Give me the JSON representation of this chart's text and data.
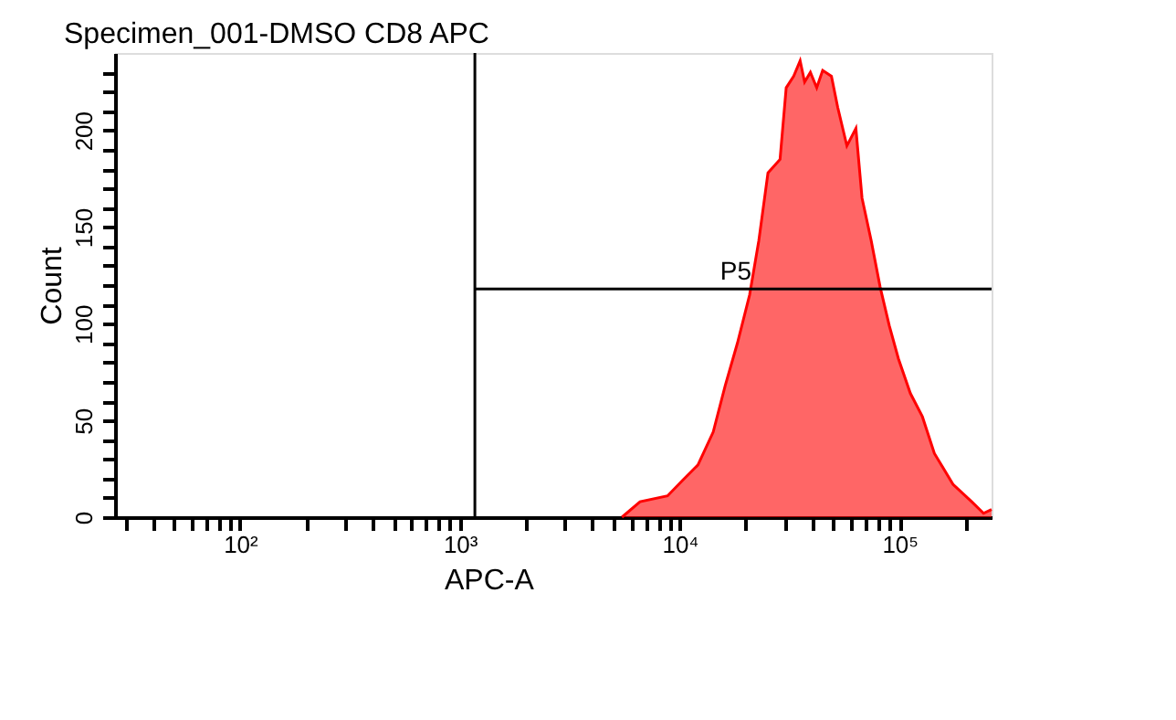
{
  "chart_data": {
    "type": "area",
    "title": "Specimen_001-DMSO CD8 APC",
    "xlabel": "APC-A",
    "ylabel": "Count",
    "log": "x",
    "grid": false,
    "xlim": [
      27,
      262144
    ],
    "ylim": [
      0,
      240
    ],
    "xticks": [
      {
        "value": 30,
        "label": null
      },
      {
        "value": 40,
        "label": null
      },
      {
        "value": 50,
        "label": null
      },
      {
        "value": 60,
        "label": null
      },
      {
        "value": 70,
        "label": null
      },
      {
        "value": 80,
        "label": null
      },
      {
        "value": 90,
        "label": null
      },
      {
        "value": 100,
        "label": "10²"
      },
      {
        "value": 200,
        "label": null
      },
      {
        "value": 300,
        "label": null
      },
      {
        "value": 400,
        "label": null
      },
      {
        "value": 500,
        "label": null
      },
      {
        "value": 600,
        "label": null
      },
      {
        "value": 700,
        "label": null
      },
      {
        "value": 800,
        "label": null
      },
      {
        "value": 900,
        "label": null
      },
      {
        "value": 1000,
        "label": "10³"
      },
      {
        "value": 2000,
        "label": null
      },
      {
        "value": 3000,
        "label": null
      },
      {
        "value": 4000,
        "label": null
      },
      {
        "value": 5000,
        "label": null
      },
      {
        "value": 6000,
        "label": null
      },
      {
        "value": 7000,
        "label": null
      },
      {
        "value": 8000,
        "label": null
      },
      {
        "value": 9000,
        "label": null
      },
      {
        "value": 10000,
        "label": "10⁴"
      },
      {
        "value": 20000,
        "label": null
      },
      {
        "value": 30000,
        "label": null
      },
      {
        "value": 40000,
        "label": null
      },
      {
        "value": 50000,
        "label": null
      },
      {
        "value": 60000,
        "label": null
      },
      {
        "value": 70000,
        "label": null
      },
      {
        "value": 80000,
        "label": null
      },
      {
        "value": 90000,
        "label": null
      },
      {
        "value": 100000,
        "label": "10⁵"
      },
      {
        "value": 200000,
        "label": null
      }
    ],
    "yticks": [
      0,
      {
        "value": 10,
        "label": null
      },
      {
        "value": 20,
        "label": null
      },
      {
        "value": 30,
        "label": null
      },
      {
        "value": 40,
        "label": null
      },
      50,
      {
        "value": 60,
        "label": null
      },
      {
        "value": 70,
        "label": null
      },
      {
        "value": 80,
        "label": null
      },
      {
        "value": 90,
        "label": null
      },
      100,
      {
        "value": 110,
        "label": null
      },
      {
        "value": 120,
        "label": null
      },
      {
        "value": 130,
        "label": null
      },
      {
        "value": 140,
        "label": null
      },
      150,
      {
        "value": 160,
        "label": null
      },
      {
        "value": 170,
        "label": null
      },
      {
        "value": 180,
        "label": null
      },
      {
        "value": 190,
        "label": null
      },
      200,
      {
        "value": 210,
        "label": null
      },
      {
        "value": 220,
        "label": null
      },
      {
        "value": 230,
        "label": null
      }
    ],
    "series": [
      {
        "color": "#ff0000",
        "x": [
          5460,
          6600,
          8800,
          10300,
          12100,
          14200,
          16100,
          18300,
          20800,
          22900,
          25200,
          28600,
          30500,
          33000,
          35300,
          37000,
          39300,
          42000,
          44700,
          49000,
          52300,
          57600,
          63300,
          67500,
          74300,
          81600,
          89800,
          98800,
          112000,
          127000,
          144000,
          175000,
          213000,
          241000,
          262144
        ],
        "values": [
          0,
          8,
          11,
          19,
          27,
          44,
          68,
          90,
          115,
          143,
          178,
          185,
          222,
          228,
          236,
          225,
          230,
          222,
          231,
          228,
          212,
          192,
          201,
          165,
          143,
          119,
          99,
          82,
          64,
          52,
          33,
          17,
          8,
          2,
          4
        ]
      },
      {
        "type": "line",
        "color": "#000000",
        "x": [
          1170,
          262144
        ],
        "values": [
          118,
          118
        ]
      }
    ],
    "ref_lines": [
      {
        "axis": "x",
        "value": 1170,
        "color": "#000000"
      }
    ],
    "annotations": [
      {
        "text": "P5",
        "x": 18000,
        "y": 118
      }
    ]
  }
}
